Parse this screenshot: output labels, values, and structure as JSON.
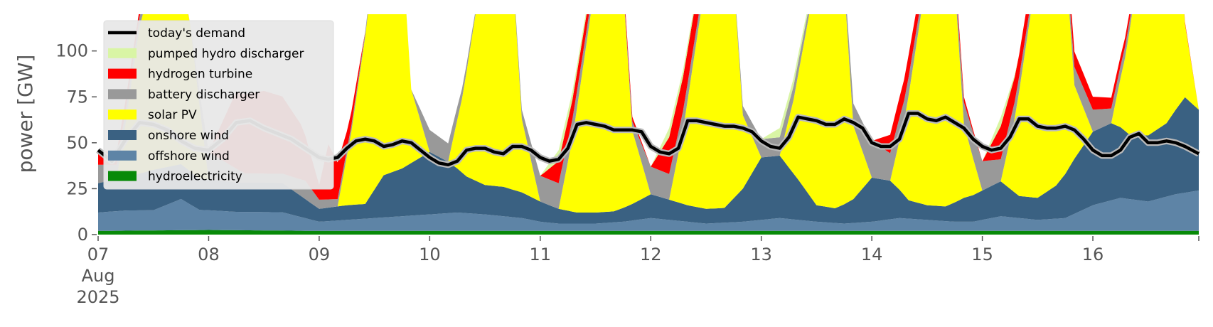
{
  "chart_data": {
    "type": "area",
    "stacked": true,
    "ylabel": "power [GW]",
    "ylim": [
      0,
      120
    ],
    "yticks": [
      0,
      25,
      50,
      75,
      100
    ],
    "xlim": [
      0,
      239
    ],
    "x_unit": "hours since 07 Aug 2025 00:00",
    "xticks": [
      {
        "x": 0,
        "label": "07",
        "sub": [
          "Aug",
          "2025"
        ]
      },
      {
        "x": 24,
        "label": "08"
      },
      {
        "x": 48,
        "label": "09"
      },
      {
        "x": 72,
        "label": "10"
      },
      {
        "x": 96,
        "label": "11"
      },
      {
        "x": 120,
        "label": "12"
      },
      {
        "x": 144,
        "label": "13"
      },
      {
        "x": 168,
        "label": "14"
      },
      {
        "x": 192,
        "label": "15"
      },
      {
        "x": 216,
        "label": "16"
      }
    ],
    "grid": false,
    "legend_position": "top-left",
    "legend": [
      {
        "key": "demand",
        "label": "today's demand",
        "kind": "line"
      },
      {
        "key": "pumped",
        "label": "pumped hydro discharger",
        "kind": "patch"
      },
      {
        "key": "h2",
        "label": "hydrogen turbine",
        "kind": "patch"
      },
      {
        "key": "battery",
        "label": "battery discharger",
        "kind": "patch"
      },
      {
        "key": "solar",
        "label": "solar PV",
        "kind": "patch"
      },
      {
        "key": "onshore",
        "label": "onshore wind",
        "kind": "patch"
      },
      {
        "key": "offshore",
        "label": "offshore wind",
        "kind": "patch"
      },
      {
        "key": "hydro",
        "label": "hydroelectricity",
        "kind": "patch"
      }
    ],
    "colors": {
      "demand": "#000000",
      "pumped": "#d9f5a5",
      "h2": "#ff0000",
      "battery": "#999999",
      "solar": "#ffff00",
      "onshore": "#3a6182",
      "offshore": "#5e84a6",
      "hydro": "#088a08"
    },
    "hydro": {
      "x": [
        0,
        24,
        48,
        72,
        96,
        120,
        144,
        168,
        192,
        216,
        239
      ],
      "y": [
        2,
        2.5,
        2,
        2,
        2,
        2,
        2,
        2,
        2,
        2,
        2
      ]
    },
    "offshore": {
      "x": [
        0,
        6,
        12,
        18,
        22,
        30,
        40,
        48,
        54,
        60,
        66,
        72,
        78,
        84,
        92,
        96,
        100,
        108,
        114,
        120,
        128,
        132,
        140,
        148,
        156,
        162,
        168,
        174,
        180,
        186,
        190,
        196,
        204,
        210,
        216,
        222,
        228,
        234,
        239
      ],
      "y": [
        10,
        11,
        11,
        17,
        11,
        10,
        10,
        5,
        6,
        7,
        8,
        9,
        10,
        9,
        7,
        5,
        4,
        4,
        5,
        7,
        5,
        4,
        5,
        7,
        5,
        4,
        5,
        7,
        6,
        5,
        5,
        8,
        6,
        7,
        14,
        18,
        16,
        20,
        22
      ]
    },
    "onshore": {
      "x": [
        0,
        6,
        12,
        18,
        22,
        30,
        40,
        48,
        54,
        58,
        62,
        66,
        72,
        76,
        80,
        84,
        88,
        92,
        96,
        100,
        104,
        108,
        112,
        116,
        120,
        124,
        128,
        132,
        136,
        140,
        144,
        148,
        152,
        156,
        160,
        164,
        168,
        172,
        176,
        180,
        184,
        188,
        192,
        196,
        200,
        204,
        208,
        212,
        216,
        220,
        224,
        228,
        232,
        236,
        239
      ],
      "y": [
        16,
        18,
        22,
        19,
        17,
        16,
        16,
        7,
        8,
        8,
        23,
        26,
        34,
        28,
        20,
        16,
        16,
        14,
        11,
        8,
        6,
        6,
        6,
        9,
        13,
        11,
        9,
        8,
        8,
        18,
        34,
        34,
        22,
        9,
        8,
        13,
        24,
        21,
        10,
        8,
        8,
        13,
        16,
        19,
        12,
        12,
        18,
        30,
        40,
        42,
        35,
        36,
        40,
        52,
        44
      ]
    },
    "solar": {
      "x": [
        0,
        4,
        6,
        9,
        14,
        16,
        20,
        24,
        48,
        52,
        55,
        62,
        65,
        68,
        72,
        76,
        79,
        86,
        89,
        92,
        96,
        100,
        103,
        110,
        113,
        116,
        120,
        124,
        127,
        134,
        137,
        140,
        144,
        148,
        151,
        158,
        161,
        164,
        168,
        172,
        175,
        182,
        185,
        188,
        192,
        196,
        199,
        206,
        209,
        212,
        216,
        220,
        223,
        230,
        233,
        236,
        239
      ],
      "y": [
        0,
        0,
        30,
        80,
        125,
        125,
        80,
        0,
        0,
        0,
        40,
        160,
        160,
        40,
        0,
        0,
        40,
        160,
        160,
        40,
        0,
        0,
        40,
        160,
        160,
        40,
        0,
        0,
        40,
        160,
        160,
        40,
        0,
        0,
        40,
        160,
        160,
        40,
        0,
        0,
        40,
        160,
        160,
        40,
        0,
        0,
        40,
        160,
        160,
        40,
        0,
        0,
        40,
        160,
        160,
        40,
        0
      ]
    },
    "battery": {
      "x": [
        0,
        20,
        24,
        32,
        40,
        45,
        48,
        68,
        72,
        76,
        80,
        84,
        88,
        92,
        96,
        100,
        112,
        116,
        120,
        124,
        136,
        140,
        144,
        148,
        160,
        164,
        168,
        172,
        184,
        188,
        192,
        196,
        208,
        212,
        216,
        220,
        232,
        239
      ],
      "y": [
        10,
        0,
        15,
        5,
        5,
        10,
        5,
        0,
        12,
        10,
        4,
        0,
        0,
        5,
        14,
        14,
        0,
        5,
        15,
        14,
        0,
        5,
        10,
        10,
        0,
        12,
        20,
        15,
        0,
        12,
        16,
        12,
        0,
        10,
        12,
        8,
        0,
        0
      ]
    },
    "h2": {
      "x": [
        0,
        20,
        24,
        30,
        36,
        40,
        44,
        48,
        50,
        54,
        58,
        96,
        100,
        104,
        120,
        124,
        128,
        132,
        136,
        140,
        168,
        172,
        176,
        192,
        196,
        200,
        239
      ],
      "y": [
        8,
        0,
        0,
        42,
        45,
        42,
        30,
        8,
        30,
        10,
        0,
        0,
        12,
        10,
        0,
        20,
        18,
        15,
        0,
        0,
        0,
        10,
        12,
        0,
        18,
        12,
        0
      ]
    },
    "pumped": {
      "x": [
        0,
        48,
        96,
        100,
        104,
        112,
        120,
        124,
        136,
        144,
        148,
        152,
        160,
        168,
        192,
        196,
        200,
        239
      ],
      "y": [
        0,
        0,
        0,
        6,
        4,
        0,
        0,
        5,
        0,
        0,
        5,
        4,
        0,
        0,
        0,
        5,
        0,
        0
      ]
    },
    "demand": {
      "x": [
        0,
        3,
        6,
        9,
        12,
        15,
        18,
        21,
        24,
        27,
        30,
        33,
        36,
        39,
        42,
        45,
        48,
        50,
        52,
        54,
        56,
        58,
        60,
        62,
        64,
        66,
        68,
        70,
        72,
        74,
        76,
        78,
        80,
        82,
        84,
        86,
        88,
        90,
        92,
        94,
        96,
        98,
        100,
        102,
        104,
        106,
        108,
        110,
        112,
        114,
        116,
        118,
        120,
        122,
        124,
        126,
        128,
        130,
        132,
        134,
        136,
        138,
        140,
        142,
        144,
        146,
        148,
        150,
        152,
        154,
        156,
        158,
        160,
        162,
        164,
        166,
        168,
        170,
        172,
        174,
        176,
        178,
        180,
        182,
        184,
        186,
        188,
        190,
        192,
        194,
        196,
        198,
        200,
        202,
        204,
        206,
        208,
        210,
        212,
        214,
        216,
        218,
        220,
        222,
        224,
        226,
        228,
        230,
        232,
        234,
        236,
        239
      ],
      "y": [
        46,
        40,
        52,
        61,
        60,
        57,
        51,
        47,
        46,
        52,
        61,
        62,
        58,
        55,
        52,
        47,
        42,
        41,
        42,
        47,
        51,
        52,
        51,
        48,
        49,
        51,
        50,
        46,
        42,
        39,
        38,
        40,
        46,
        47,
        47,
        45,
        44,
        48,
        48,
        46,
        42,
        40,
        41,
        47,
        60,
        61,
        60,
        59,
        57,
        57,
        57,
        56,
        48,
        45,
        44,
        47,
        62,
        62,
        61,
        60,
        59,
        59,
        58,
        56,
        51,
        48,
        47,
        53,
        64,
        63,
        62,
        60,
        60,
        63,
        61,
        58,
        50,
        48,
        48,
        52,
        66,
        66,
        63,
        62,
        64,
        61,
        58,
        52,
        48,
        46,
        47,
        53,
        63,
        63,
        59,
        58,
        58,
        59,
        57,
        52,
        46,
        43,
        43,
        46,
        53,
        55,
        50,
        50,
        51,
        50,
        48,
        44
      ]
    }
  }
}
